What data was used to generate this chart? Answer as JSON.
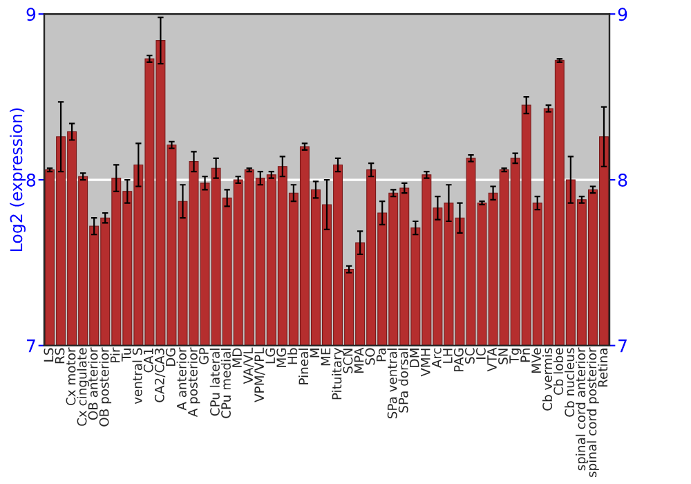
{
  "chart_data": {
    "type": "bar",
    "ylabel": "Log2 (expression)",
    "categories": [
      "LS",
      "RS",
      "Cx motor",
      "Cx cingulate",
      "OB anterior",
      "OB posterior",
      "Pir",
      "Tu",
      "ventral S",
      "CA1",
      "CA2/CA3",
      "DG",
      "A anterior",
      "A posterior",
      "GP",
      "CPu lateral",
      "CPu medial",
      "MD",
      "VA/VL",
      "VPM/VPL",
      "LG",
      "MG",
      "Hb",
      "Pineal",
      "M",
      "ME",
      "Pituitary",
      "SCN",
      "MPA",
      "SO",
      "Pa",
      "SPa ventral",
      "SPa dorsal",
      "DM",
      "VMH",
      "Arc",
      "LH",
      "PAG",
      "SC",
      "IC",
      "VTA",
      "SN",
      "Tg",
      "Pn",
      "MVe",
      "Cb vermis",
      "Cb lobe",
      "Cb nucleus",
      "spinal cord anterior",
      "spinal cord posterior",
      "Retina"
    ],
    "values": [
      8.06,
      8.26,
      8.29,
      8.02,
      7.72,
      7.77,
      8.01,
      7.93,
      8.09,
      8.73,
      8.84,
      8.21,
      7.87,
      8.11,
      7.98,
      8.07,
      7.89,
      8.0,
      8.06,
      8.01,
      8.03,
      8.08,
      7.92,
      8.2,
      7.94,
      7.85,
      8.09,
      7.46,
      7.62,
      8.06,
      7.8,
      7.92,
      7.95,
      7.71,
      8.03,
      7.83,
      7.86,
      7.77,
      8.13,
      7.86,
      7.92,
      8.06,
      8.13,
      8.45,
      7.86,
      8.43,
      8.72,
      8.0,
      7.88,
      7.94,
      8.26
    ],
    "errors": [
      0.01,
      0.21,
      0.05,
      0.02,
      0.05,
      0.03,
      0.08,
      0.07,
      0.13,
      0.02,
      0.14,
      0.02,
      0.1,
      0.06,
      0.04,
      0.06,
      0.05,
      0.02,
      0.01,
      0.04,
      0.02,
      0.06,
      0.05,
      0.02,
      0.05,
      0.15,
      0.04,
      0.02,
      0.07,
      0.04,
      0.07,
      0.02,
      0.03,
      0.04,
      0.02,
      0.07,
      0.11,
      0.09,
      0.02,
      0.01,
      0.04,
      0.01,
      0.03,
      0.05,
      0.04,
      0.02,
      0.01,
      0.14,
      0.02,
      0.02,
      0.18
    ],
    "color": "#b52e2e",
    "ylim": [
      7,
      9
    ],
    "yticks": [
      7,
      8,
      9
    ],
    "y2lim": [
      7,
      9
    ],
    "y2ticks": [
      7,
      8,
      9
    ],
    "grid": "y"
  }
}
